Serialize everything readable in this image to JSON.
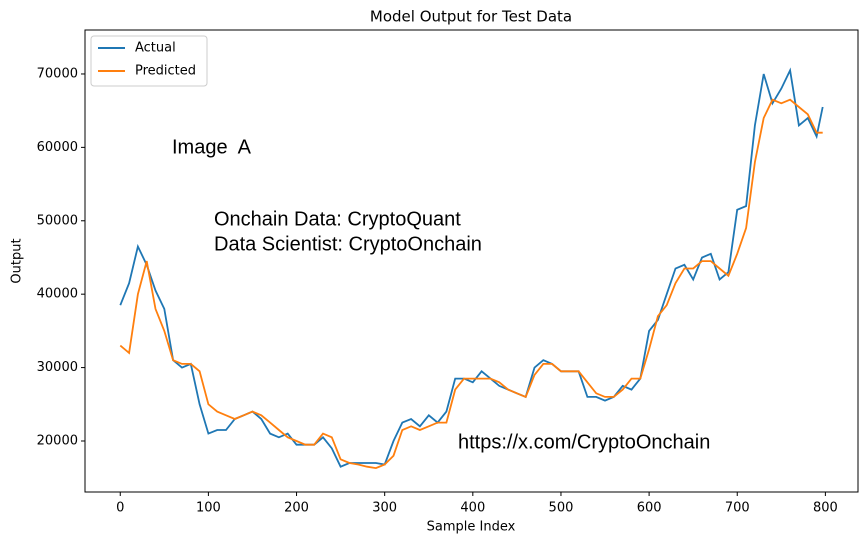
{
  "chart_data": {
    "type": "line",
    "title": "Model Output for Test Data",
    "x_label": "Sample Index",
    "y_label": "Output",
    "x": [
      0,
      10,
      20,
      30,
      40,
      50,
      60,
      70,
      80,
      90,
      100,
      110,
      120,
      130,
      140,
      150,
      160,
      170,
      180,
      190,
      200,
      210,
      220,
      230,
      240,
      250,
      260,
      270,
      280,
      290,
      300,
      310,
      320,
      330,
      340,
      350,
      360,
      370,
      380,
      390,
      400,
      410,
      420,
      430,
      440,
      450,
      460,
      470,
      480,
      490,
      500,
      510,
      520,
      530,
      540,
      550,
      560,
      570,
      580,
      590,
      600,
      610,
      620,
      630,
      640,
      650,
      660,
      670,
      680,
      690,
      700,
      710,
      720,
      730,
      740,
      750,
      760,
      770,
      780,
      790,
      797
    ],
    "series": [
      {
        "name": "Actual",
        "color": "#1f77b4",
        "values": [
          38500,
          41500,
          46500,
          44000,
          40500,
          38000,
          31000,
          30000,
          30500,
          25000,
          21000,
          21500,
          21500,
          23000,
          23500,
          24000,
          23000,
          21000,
          20500,
          21000,
          19500,
          19500,
          19500,
          20500,
          19000,
          16500,
          17000,
          17000,
          17000,
          17000,
          16800,
          20000,
          22500,
          23000,
          22000,
          23500,
          22500,
          24000,
          28500,
          28500,
          28000,
          29500,
          28500,
          27500,
          27000,
          26500,
          26000,
          30000,
          31000,
          30500,
          29500,
          29500,
          29500,
          26000,
          26000,
          25500,
          26000,
          27500,
          27000,
          28500,
          35000,
          36500,
          40000,
          43500,
          44000,
          42000,
          45000,
          45500,
          42000,
          43000,
          51500,
          52000,
          63000,
          70000,
          66000,
          68000,
          70500,
          63000,
          64000,
          61500,
          65500
        ]
      },
      {
        "name": "Predicted",
        "color": "#ff7f0e",
        "values": [
          33000,
          32000,
          40000,
          44500,
          38000,
          35000,
          31000,
          30500,
          30500,
          29500,
          25000,
          24000,
          23500,
          23000,
          23500,
          24000,
          23500,
          22500,
          21500,
          20500,
          20000,
          19500,
          19500,
          21000,
          20500,
          17500,
          17000,
          16800,
          16500,
          16300,
          16800,
          18000,
          21500,
          22000,
          21500,
          22000,
          22500,
          22500,
          27000,
          28500,
          28500,
          28500,
          28500,
          28000,
          27000,
          26500,
          26000,
          29000,
          30500,
          30500,
          29500,
          29500,
          29500,
          28000,
          26500,
          26000,
          26000,
          27000,
          28500,
          28500,
          32500,
          37000,
          38500,
          41500,
          43500,
          43500,
          44500,
          44500,
          43500,
          42500,
          45500,
          49000,
          58000,
          64000,
          66500,
          66000,
          66500,
          65500,
          64500,
          62000,
          62000
        ]
      }
    ],
    "xlim": [
      -40,
      837
    ],
    "ylim": [
      13050,
      75990
    ],
    "xticks": [
      0,
      100,
      200,
      300,
      400,
      500,
      600,
      700,
      800
    ],
    "yticks": [
      20000,
      30000,
      40000,
      50000,
      60000,
      70000
    ],
    "legend": "upper left",
    "annotations": [
      "Image  A",
      "Onchain Data: CryptoQuant",
      "Data Scientist: CryptoOnchain",
      "https://x.com/CryptoOnchain"
    ]
  }
}
